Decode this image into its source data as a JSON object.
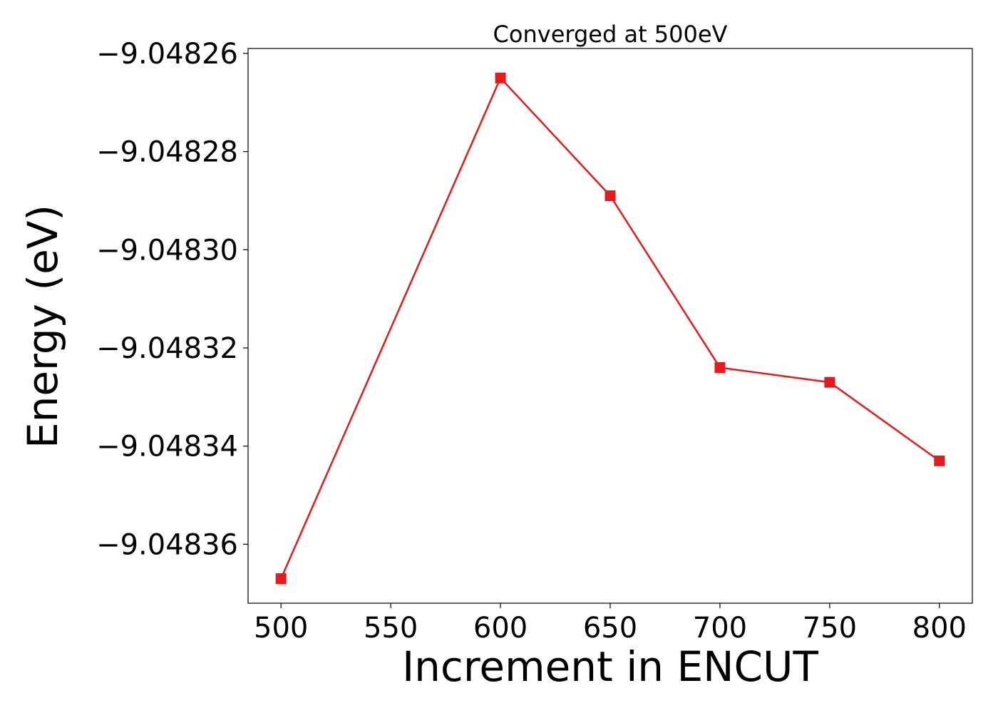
{
  "chart_data": {
    "type": "line",
    "title": "Converged at 500eV",
    "xlabel": "Increment in ENCUT",
    "ylabel": "Energy (eV)",
    "x": [
      500,
      600,
      650,
      700,
      750,
      800
    ],
    "series": [
      {
        "values": [
          -9.048367,
          -9.048265,
          -9.048289,
          -9.048324,
          -9.048327,
          -9.048343
        ],
        "color": "#e41a1c",
        "marker": "square"
      }
    ],
    "xticks": [
      500,
      550,
      600,
      650,
      700,
      750,
      800
    ],
    "xtick_labels": [
      "500",
      "550",
      "600",
      "650",
      "700",
      "750",
      "800"
    ],
    "yticks": [
      -9.04826,
      -9.04828,
      -9.0483,
      -9.04832,
      -9.04834,
      -9.04836
    ],
    "ytick_labels": [
      "−9.04826",
      "−9.04828",
      "−9.04830",
      "−9.04832",
      "−9.04834",
      "−9.04836"
    ],
    "xlim": [
      485,
      815
    ],
    "ylim": [
      -9.048372,
      -9.048259
    ],
    "grid": false,
    "legend": "none"
  }
}
